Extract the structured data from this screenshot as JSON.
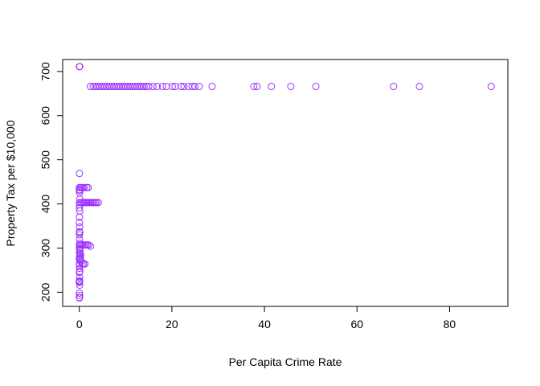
{
  "chart_data": {
    "type": "scatter",
    "xlabel": "Per Capita Crime Rate",
    "ylabel": "Property Tax per $10,000",
    "xlim": [
      -3.6,
      92.6
    ],
    "ylim": [
      167.9,
      727.1
    ],
    "xticks": [
      0,
      20,
      40,
      60,
      80
    ],
    "yticks": [
      200,
      300,
      400,
      500,
      600,
      700
    ],
    "marker": {
      "shape": "open-circle",
      "color": "#9b30ff"
    },
    "box": true,
    "grid": false,
    "series": [
      {
        "points": [
          [
            0.01,
            711
          ],
          [
            0.09,
            711
          ],
          [
            2.4,
            666
          ],
          [
            3.0,
            666
          ],
          [
            3.5,
            666
          ],
          [
            4.0,
            666
          ],
          [
            4.5,
            666
          ],
          [
            5.0,
            666
          ],
          [
            5.5,
            666
          ],
          [
            6.0,
            666
          ],
          [
            6.5,
            666
          ],
          [
            7.0,
            666
          ],
          [
            7.5,
            666
          ],
          [
            8.0,
            666
          ],
          [
            8.5,
            666
          ],
          [
            9.0,
            666
          ],
          [
            9.5,
            666
          ],
          [
            10.0,
            666
          ],
          [
            10.5,
            666
          ],
          [
            11.0,
            666
          ],
          [
            11.5,
            666
          ],
          [
            12.0,
            666
          ],
          [
            12.5,
            666
          ],
          [
            13.0,
            666
          ],
          [
            13.5,
            666
          ],
          [
            14.0,
            666
          ],
          [
            14.5,
            666
          ],
          [
            15.0,
            666
          ],
          [
            15.9,
            666
          ],
          [
            16.8,
            666
          ],
          [
            18.0,
            666
          ],
          [
            18.8,
            666
          ],
          [
            20.1,
            666
          ],
          [
            20.7,
            666
          ],
          [
            22.0,
            666
          ],
          [
            22.6,
            666
          ],
          [
            23.6,
            666
          ],
          [
            24.4,
            666
          ],
          [
            25.0,
            666
          ],
          [
            25.9,
            666
          ],
          [
            28.7,
            666
          ],
          [
            37.7,
            666
          ],
          [
            38.4,
            666
          ],
          [
            41.5,
            666
          ],
          [
            45.7,
            666
          ],
          [
            51.1,
            666
          ],
          [
            67.9,
            666
          ],
          [
            73.5,
            666
          ],
          [
            89.0,
            666
          ],
          [
            0.03,
            469
          ],
          [
            0.02,
            437
          ],
          [
            0.2,
            437
          ],
          [
            0.5,
            437
          ],
          [
            0.8,
            437
          ],
          [
            1.1,
            437
          ],
          [
            1.6,
            437
          ],
          [
            1.9,
            437
          ],
          [
            0.01,
            432
          ],
          [
            0.06,
            430
          ],
          [
            0.04,
            425
          ],
          [
            0.1,
            411
          ],
          [
            0.02,
            403
          ],
          [
            0.4,
            403
          ],
          [
            0.7,
            403
          ],
          [
            1.0,
            403
          ],
          [
            1.3,
            403
          ],
          [
            1.6,
            403
          ],
          [
            1.9,
            403
          ],
          [
            2.2,
            403
          ],
          [
            2.5,
            403
          ],
          [
            2.8,
            403
          ],
          [
            3.1,
            403
          ],
          [
            3.4,
            403
          ],
          [
            3.7,
            403
          ],
          [
            4.1,
            403
          ],
          [
            0.05,
            398
          ],
          [
            0.02,
            391
          ],
          [
            0.08,
            384
          ],
          [
            0.03,
            370
          ],
          [
            0.01,
            358
          ],
          [
            0.06,
            348
          ],
          [
            0.04,
            337
          ],
          [
            0.09,
            335
          ],
          [
            0.02,
            330
          ],
          [
            0.05,
            320
          ],
          [
            0.1,
            311
          ],
          [
            0.03,
            307
          ],
          [
            0.2,
            307
          ],
          [
            0.5,
            307
          ],
          [
            0.8,
            307
          ],
          [
            1.1,
            307
          ],
          [
            1.4,
            307
          ],
          [
            1.7,
            307
          ],
          [
            2.0,
            307
          ],
          [
            2.4,
            304
          ],
          [
            0.01,
            300
          ],
          [
            0.07,
            296
          ],
          [
            0.15,
            293
          ],
          [
            0.04,
            289
          ],
          [
            0.12,
            287
          ],
          [
            0.3,
            284
          ],
          [
            0.06,
            281
          ],
          [
            0.2,
            277
          ],
          [
            0.01,
            276
          ],
          [
            0.09,
            273
          ],
          [
            0.35,
            270
          ],
          [
            0.02,
            265
          ],
          [
            0.6,
            264
          ],
          [
            0.9,
            264
          ],
          [
            1.2,
            264
          ],
          [
            0.05,
            261
          ],
          [
            0.04,
            254
          ],
          [
            0.1,
            247
          ],
          [
            0.02,
            245
          ],
          [
            0.07,
            233
          ],
          [
            0.03,
            226
          ],
          [
            0.05,
            224
          ],
          [
            0.01,
            222
          ],
          [
            0.08,
            216
          ],
          [
            0.02,
            198
          ],
          [
            0.06,
            193
          ],
          [
            0.01,
            188
          ],
          [
            0.04,
            187
          ]
        ]
      }
    ]
  }
}
